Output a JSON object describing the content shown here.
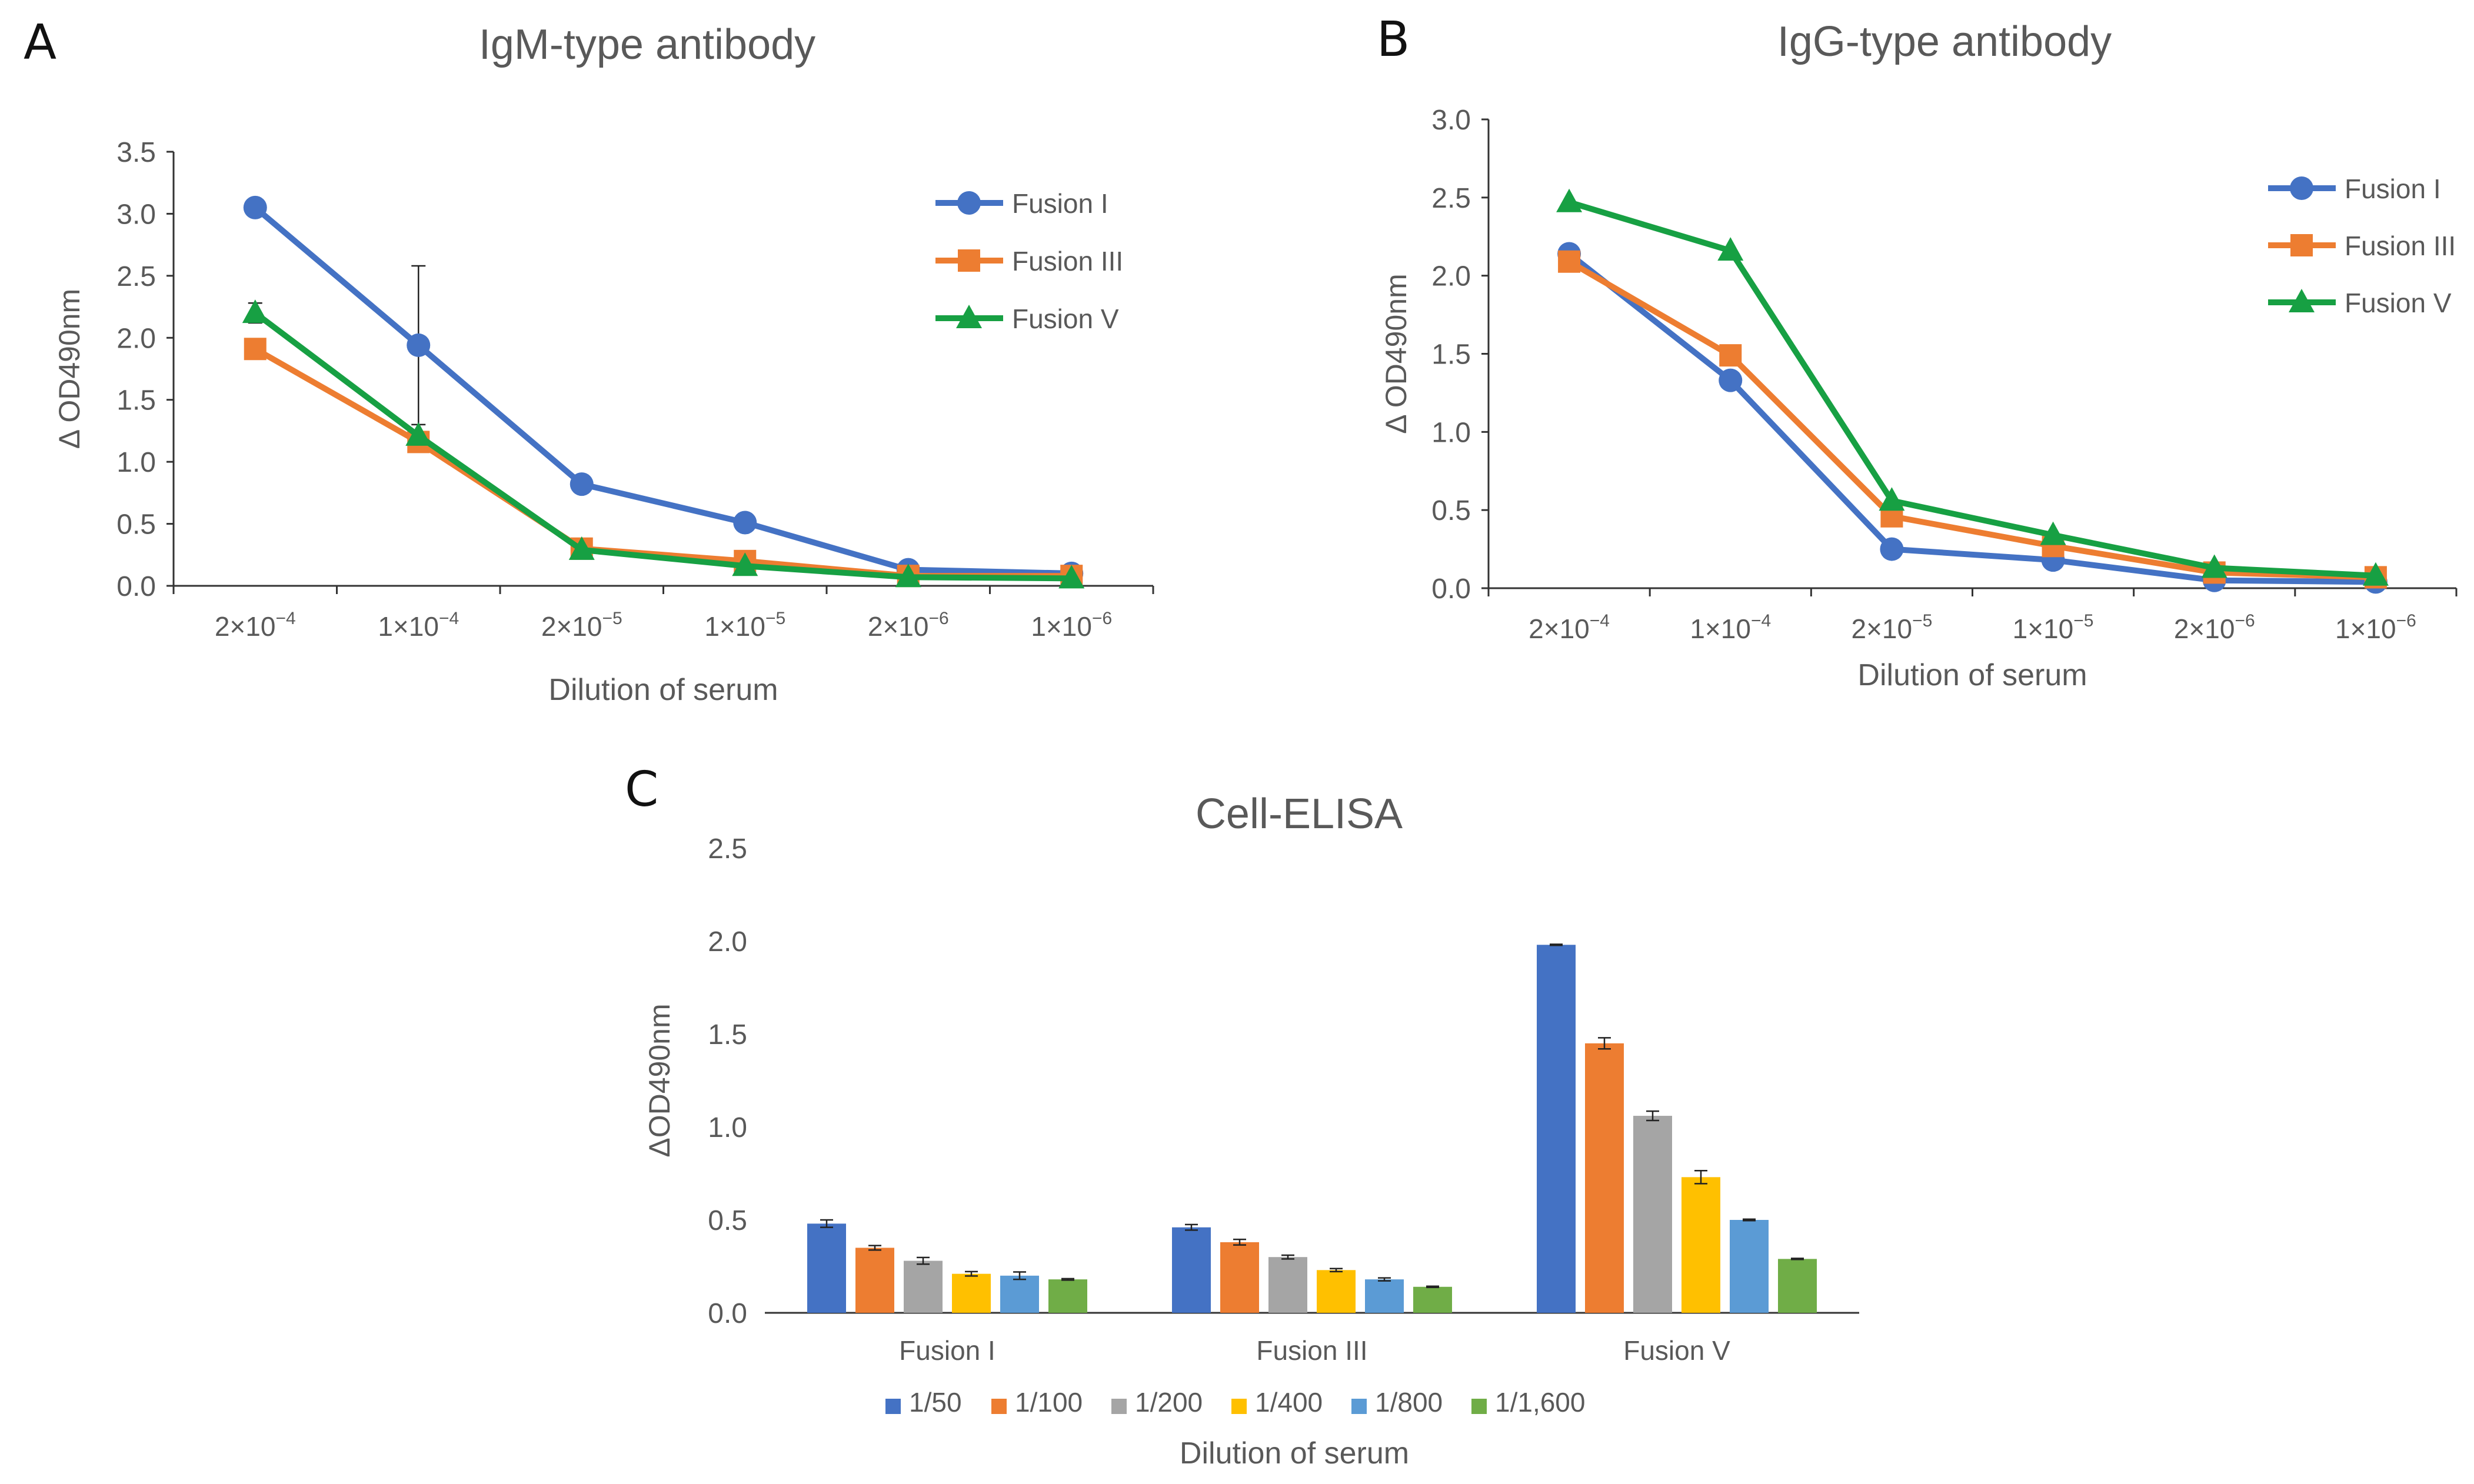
{
  "figure": {
    "panels": [
      "A",
      "B",
      "C"
    ]
  },
  "chart_data": [
    {
      "id": "A",
      "type": "line",
      "panel_label": "A",
      "title": "IgM-type antibody",
      "xlabel": "Dilution of serum",
      "ylabel": "Δ OD490nm",
      "categories": [
        {
          "base": "2×10",
          "exp": "−4"
        },
        {
          "base": "1×10",
          "exp": "−4"
        },
        {
          "base": "2×10",
          "exp": "−5"
        },
        {
          "base": "1×10",
          "exp": "−5"
        },
        {
          "base": "2×10",
          "exp": "−6"
        },
        {
          "base": "1×10",
          "exp": "−6"
        }
      ],
      "ylim": [
        0,
        3.5
      ],
      "yticks": [
        "0.0",
        "0.5",
        "1.0",
        "1.5",
        "2.0",
        "2.5",
        "3.0",
        "3.5"
      ],
      "grid": false,
      "legend_position": "top-right",
      "series": [
        {
          "name": "Fusion I",
          "color": "#4472C4",
          "marker": "circle",
          "values": [
            3.05,
            1.94,
            0.82,
            0.51,
            0.13,
            0.1
          ],
          "errors": [
            0,
            0.64,
            0.07,
            0,
            0,
            0
          ]
        },
        {
          "name": "Fusion III",
          "color": "#ED7D31",
          "marker": "square",
          "values": [
            1.91,
            1.16,
            0.3,
            0.2,
            0.08,
            0.08
          ],
          "errors": [
            0,
            0,
            0,
            0,
            0,
            0
          ]
        },
        {
          "name": "Fusion V",
          "color": "#17A043",
          "marker": "triangle",
          "values": [
            2.2,
            1.21,
            0.29,
            0.16,
            0.07,
            0.06
          ],
          "errors": [
            0.08,
            0,
            0,
            0,
            0,
            0
          ]
        }
      ]
    },
    {
      "id": "B",
      "type": "line",
      "panel_label": "B",
      "title": "IgG-type antibody",
      "xlabel": "Dilution of serum",
      "ylabel": "Δ OD490nm",
      "categories": [
        {
          "base": "2×10",
          "exp": "−4"
        },
        {
          "base": "1×10",
          "exp": "−4"
        },
        {
          "base": "2×10",
          "exp": "−5"
        },
        {
          "base": "1×10",
          "exp": "−5"
        },
        {
          "base": "2×10",
          "exp": "−6"
        },
        {
          "base": "1×10",
          "exp": "−6"
        }
      ],
      "ylim": [
        0,
        3.0
      ],
      "yticks": [
        "0.0",
        "0.5",
        "1.0",
        "1.5",
        "2.0",
        "2.5",
        "3.0"
      ],
      "grid": false,
      "legend_position": "top-right",
      "series": [
        {
          "name": "Fusion I",
          "color": "#4472C4",
          "marker": "circle",
          "values": [
            2.14,
            1.33,
            0.25,
            0.18,
            0.05,
            0.04
          ],
          "errors": [
            0,
            0,
            0,
            0,
            0,
            0
          ]
        },
        {
          "name": "Fusion III",
          "color": "#ED7D31",
          "marker": "square",
          "values": [
            2.09,
            1.49,
            0.46,
            0.27,
            0.1,
            0.07
          ],
          "errors": [
            0,
            0,
            0,
            0,
            0,
            0
          ]
        },
        {
          "name": "Fusion V",
          "color": "#17A043",
          "marker": "triangle",
          "values": [
            2.47,
            2.16,
            0.56,
            0.34,
            0.13,
            0.08
          ],
          "errors": [
            0,
            0,
            0,
            0,
            0,
            0
          ]
        }
      ]
    },
    {
      "id": "C",
      "type": "bar",
      "panel_label": "C",
      "title": "Cell-ELISA",
      "xlabel": "Dilution of serum",
      "ylabel": "ΔOD490nm",
      "categories": [
        "Fusion I",
        "Fusion III",
        "Fusion V"
      ],
      "ylim": [
        0,
        2.5
      ],
      "yticks": [
        "0.0",
        "0.5",
        "1.0",
        "1.5",
        "2.0",
        "2.5"
      ],
      "grid": false,
      "legend_position": "bottom",
      "series": [
        {
          "name": "1/50",
          "color": "#4472C4",
          "values": [
            0.48,
            0.46,
            1.98
          ],
          "errors": [
            0.02,
            0.015,
            0.003
          ]
        },
        {
          "name": "1/100",
          "color": "#ED7D31",
          "values": [
            0.35,
            0.38,
            1.45
          ],
          "errors": [
            0.012,
            0.015,
            0.03
          ]
        },
        {
          "name": "1/200",
          "color": "#A5A5A5",
          "values": [
            0.28,
            0.3,
            1.06
          ],
          "errors": [
            0.018,
            0.01,
            0.025
          ]
        },
        {
          "name": "1/400",
          "color": "#FFC000",
          "values": [
            0.21,
            0.23,
            0.73
          ],
          "errors": [
            0.012,
            0.008,
            0.035
          ]
        },
        {
          "name": "1/800",
          "color": "#5B9BD5",
          "values": [
            0.2,
            0.18,
            0.5
          ],
          "errors": [
            0.02,
            0.008,
            0.004
          ]
        },
        {
          "name": "1/1,600",
          "color": "#70AD47",
          "values": [
            0.18,
            0.14,
            0.29
          ],
          "errors": [
            0.004,
            0.003,
            0.003
          ]
        }
      ]
    }
  ]
}
